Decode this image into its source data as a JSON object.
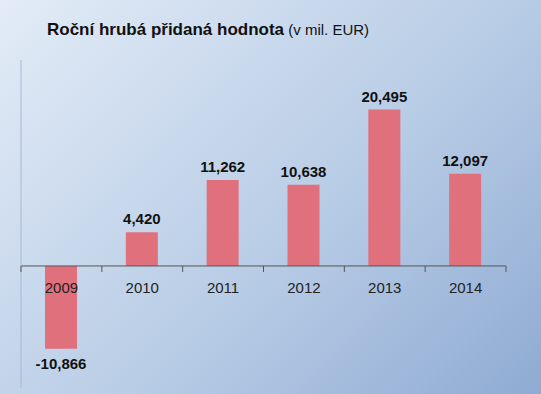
{
  "chart_data": {
    "type": "bar",
    "title": "Roční hrubá přidaná hodnota (v mil. EUR)",
    "categories": [
      "2009",
      "2010",
      "2011",
      "2012",
      "2013",
      "2014"
    ],
    "values": [
      -10.866,
      4.42,
      11.262,
      10.638,
      20.495,
      12.097
    ],
    "value_labels": [
      "-10,866",
      "4,420",
      "11,262",
      "10,638",
      "20,495",
      "12,097"
    ],
    "color": "#e0707c",
    "ylim": [
      -16,
      27
    ],
    "data_labels": true,
    "tick_labels": "x",
    "grid": false
  }
}
